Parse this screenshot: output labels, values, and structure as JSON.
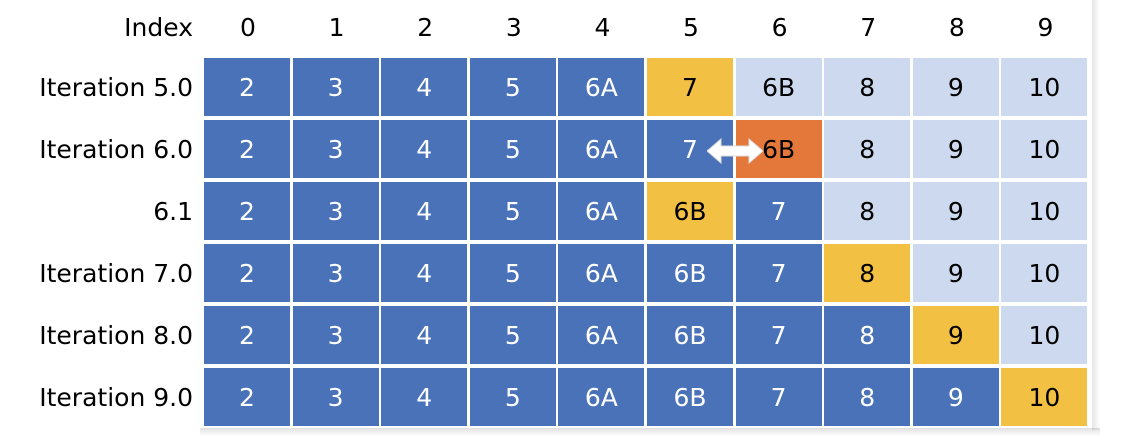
{
  "header": {
    "label": "Index",
    "indices": [
      "0",
      "1",
      "2",
      "3",
      "4",
      "5",
      "6",
      "7",
      "8",
      "9"
    ]
  },
  "rows": [
    {
      "label": "Iteration 5.0",
      "cells": [
        {
          "v": "2",
          "c": "dark"
        },
        {
          "v": "3",
          "c": "dark"
        },
        {
          "v": "4",
          "c": "dark"
        },
        {
          "v": "5",
          "c": "dark"
        },
        {
          "v": "6A",
          "c": "dark"
        },
        {
          "v": "7",
          "c": "yellow"
        },
        {
          "v": "6B",
          "c": "light"
        },
        {
          "v": "8",
          "c": "light"
        },
        {
          "v": "9",
          "c": "light"
        },
        {
          "v": "10",
          "c": "light"
        }
      ]
    },
    {
      "label": "Iteration 6.0",
      "cells": [
        {
          "v": "2",
          "c": "dark"
        },
        {
          "v": "3",
          "c": "dark"
        },
        {
          "v": "4",
          "c": "dark"
        },
        {
          "v": "5",
          "c": "dark"
        },
        {
          "v": "6A",
          "c": "dark"
        },
        {
          "v": "7",
          "c": "dark"
        },
        {
          "v": "6B",
          "c": "orange"
        },
        {
          "v": "8",
          "c": "light"
        },
        {
          "v": "9",
          "c": "light"
        },
        {
          "v": "10",
          "c": "light"
        }
      ]
    },
    {
      "label": "6.1",
      "cells": [
        {
          "v": "2",
          "c": "dark"
        },
        {
          "v": "3",
          "c": "dark"
        },
        {
          "v": "4",
          "c": "dark"
        },
        {
          "v": "5",
          "c": "dark"
        },
        {
          "v": "6A",
          "c": "dark"
        },
        {
          "v": "6B",
          "c": "yellow"
        },
        {
          "v": "7",
          "c": "dark"
        },
        {
          "v": "8",
          "c": "light"
        },
        {
          "v": "9",
          "c": "light"
        },
        {
          "v": "10",
          "c": "light"
        }
      ]
    },
    {
      "label": "Iteration 7.0",
      "cells": [
        {
          "v": "2",
          "c": "dark"
        },
        {
          "v": "3",
          "c": "dark"
        },
        {
          "v": "4",
          "c": "dark"
        },
        {
          "v": "5",
          "c": "dark"
        },
        {
          "v": "6A",
          "c": "dark"
        },
        {
          "v": "6B",
          "c": "dark"
        },
        {
          "v": "7",
          "c": "dark"
        },
        {
          "v": "8",
          "c": "yellow"
        },
        {
          "v": "9",
          "c": "light"
        },
        {
          "v": "10",
          "c": "light"
        }
      ]
    },
    {
      "label": "Iteration 8.0",
      "cells": [
        {
          "v": "2",
          "c": "dark"
        },
        {
          "v": "3",
          "c": "dark"
        },
        {
          "v": "4",
          "c": "dark"
        },
        {
          "v": "5",
          "c": "dark"
        },
        {
          "v": "6A",
          "c": "dark"
        },
        {
          "v": "6B",
          "c": "dark"
        },
        {
          "v": "7",
          "c": "dark"
        },
        {
          "v": "8",
          "c": "dark"
        },
        {
          "v": "9",
          "c": "yellow"
        },
        {
          "v": "10",
          "c": "light"
        }
      ]
    },
    {
      "label": "Iteration 9.0",
      "cells": [
        {
          "v": "2",
          "c": "dark"
        },
        {
          "v": "3",
          "c": "dark"
        },
        {
          "v": "4",
          "c": "dark"
        },
        {
          "v": "5",
          "c": "dark"
        },
        {
          "v": "6A",
          "c": "dark"
        },
        {
          "v": "6B",
          "c": "dark"
        },
        {
          "v": "7",
          "c": "dark"
        },
        {
          "v": "8",
          "c": "dark"
        },
        {
          "v": "9",
          "c": "dark"
        },
        {
          "v": "10",
          "c": "yellow"
        }
      ]
    }
  ],
  "colors": {
    "dark": "#4a72b8",
    "light": "#cdd9ee",
    "yellow": "#f2c042",
    "orange": "#e4773a"
  },
  "swap_arrow": {
    "icon": "double-arrow-icon",
    "row": 1,
    "between": [
      5,
      6
    ]
  }
}
